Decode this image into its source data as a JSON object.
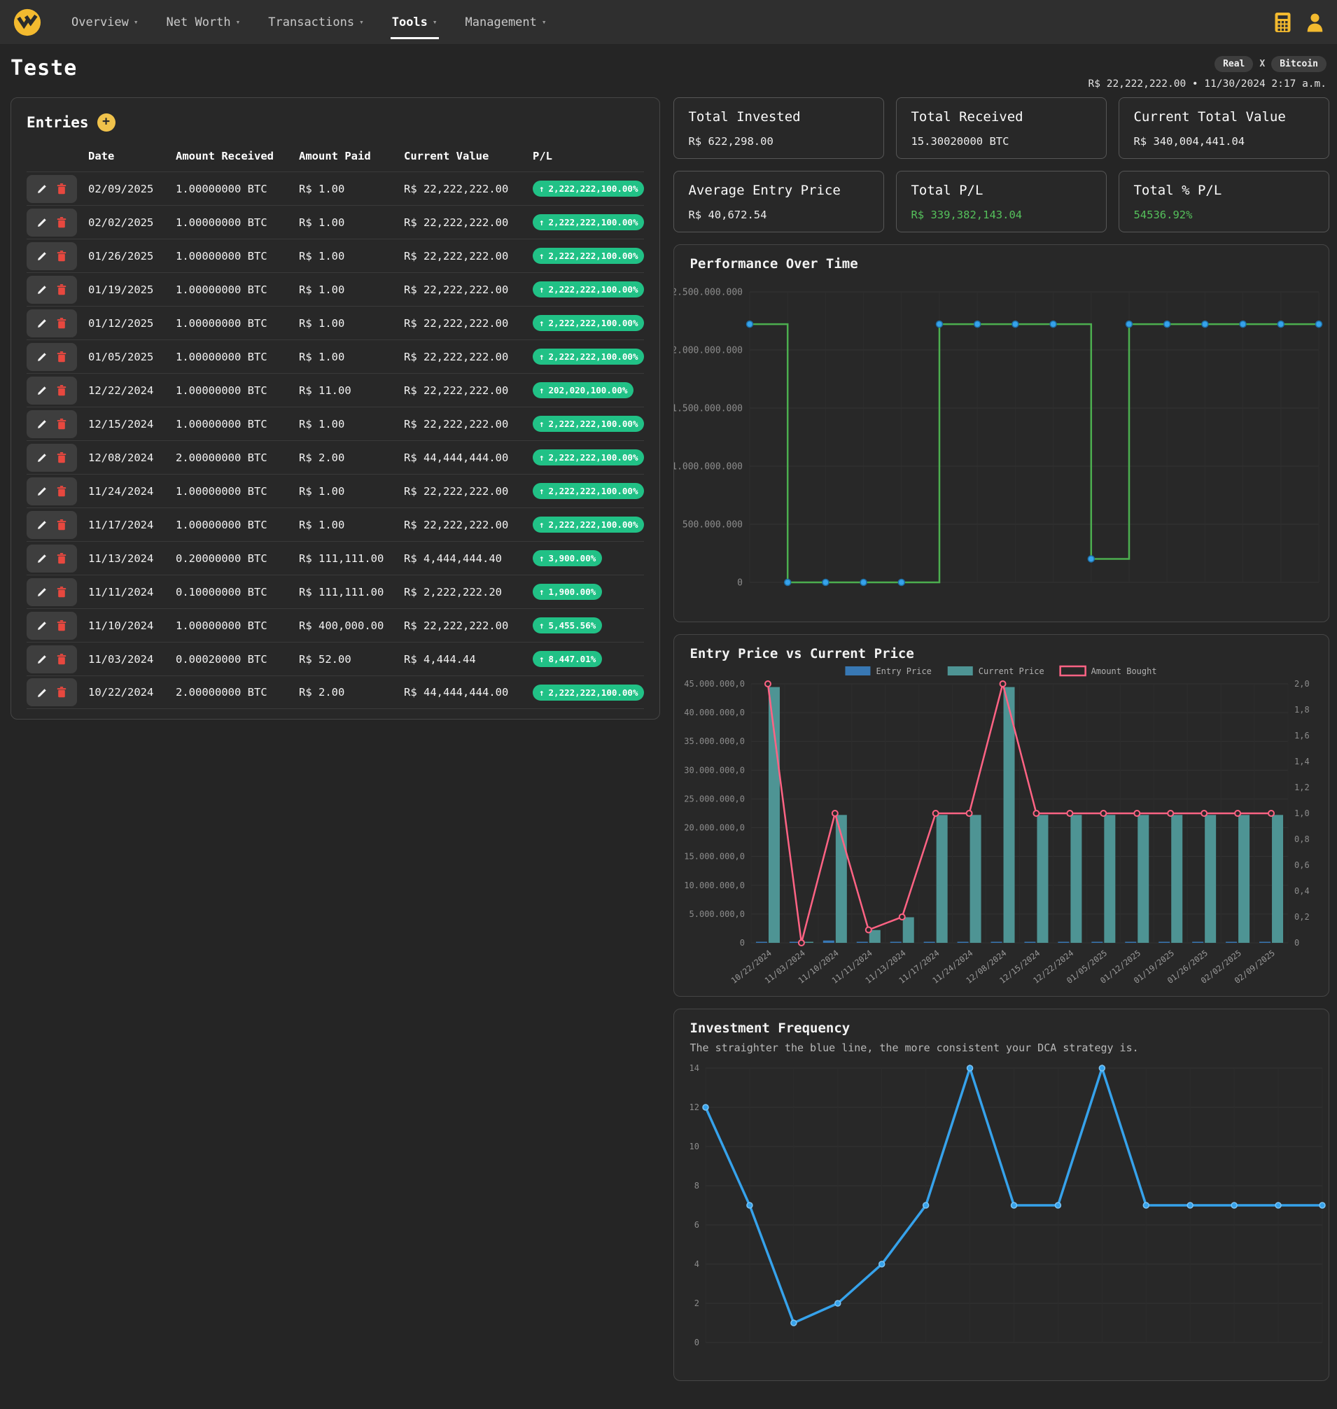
{
  "nav": {
    "items": [
      {
        "label": "Overview",
        "caret": "▾"
      },
      {
        "label": "Net Worth",
        "caret": "▾"
      },
      {
        "label": "Transactions",
        "caret": "▾"
      },
      {
        "label": "Tools",
        "caret": "▾"
      },
      {
        "label": "Management",
        "caret": "▾"
      }
    ],
    "active_item": "Tools",
    "right_icons": [
      "calculator-icon",
      "user-icon"
    ],
    "accent_color": "#f3ba2f"
  },
  "header": {
    "title": "Teste",
    "pair_left": "Real",
    "pair_separator": "X",
    "pair_right": "Bitcoin",
    "price_line": "R$ 22,222,222.00 • 11/30/2024 2:17 a.m."
  },
  "entries": {
    "title": "Entries",
    "add_icon": "plus-icon",
    "row_action_icons": [
      "pencil-icon",
      "trash-icon"
    ],
    "columns": [
      "Date",
      "Amount Received",
      "Amount Paid",
      "Current Value",
      "P/L"
    ],
    "pl_up_arrow": "↑",
    "pl_badge_color": "#21c186",
    "rows": [
      {
        "date": "02/09/2025",
        "amount_received": "1.00000000 BTC",
        "amount_paid": "R$ 1.00",
        "current_value": "R$ 22,222,222.00",
        "pl": "2,222,222,100.00%"
      },
      {
        "date": "02/02/2025",
        "amount_received": "1.00000000 BTC",
        "amount_paid": "R$ 1.00",
        "current_value": "R$ 22,222,222.00",
        "pl": "2,222,222,100.00%"
      },
      {
        "date": "01/26/2025",
        "amount_received": "1.00000000 BTC",
        "amount_paid": "R$ 1.00",
        "current_value": "R$ 22,222,222.00",
        "pl": "2,222,222,100.00%"
      },
      {
        "date": "01/19/2025",
        "amount_received": "1.00000000 BTC",
        "amount_paid": "R$ 1.00",
        "current_value": "R$ 22,222,222.00",
        "pl": "2,222,222,100.00%"
      },
      {
        "date": "01/12/2025",
        "amount_received": "1.00000000 BTC",
        "amount_paid": "R$ 1.00",
        "current_value": "R$ 22,222,222.00",
        "pl": "2,222,222,100.00%"
      },
      {
        "date": "01/05/2025",
        "amount_received": "1.00000000 BTC",
        "amount_paid": "R$ 1.00",
        "current_value": "R$ 22,222,222.00",
        "pl": "2,222,222,100.00%"
      },
      {
        "date": "12/22/2024",
        "amount_received": "1.00000000 BTC",
        "amount_paid": "R$ 11.00",
        "current_value": "R$ 22,222,222.00",
        "pl": "202,020,100.00%"
      },
      {
        "date": "12/15/2024",
        "amount_received": "1.00000000 BTC",
        "amount_paid": "R$ 1.00",
        "current_value": "R$ 22,222,222.00",
        "pl": "2,222,222,100.00%"
      },
      {
        "date": "12/08/2024",
        "amount_received": "2.00000000 BTC",
        "amount_paid": "R$ 2.00",
        "current_value": "R$ 44,444,444.00",
        "pl": "2,222,222,100.00%"
      },
      {
        "date": "11/24/2024",
        "amount_received": "1.00000000 BTC",
        "amount_paid": "R$ 1.00",
        "current_value": "R$ 22,222,222.00",
        "pl": "2,222,222,100.00%"
      },
      {
        "date": "11/17/2024",
        "amount_received": "1.00000000 BTC",
        "amount_paid": "R$ 1.00",
        "current_value": "R$ 22,222,222.00",
        "pl": "2,222,222,100.00%"
      },
      {
        "date": "11/13/2024",
        "amount_received": "0.20000000 BTC",
        "amount_paid": "R$ 111,111.00",
        "current_value": "R$ 4,444,444.40",
        "pl": "3,900.00%"
      },
      {
        "date": "11/11/2024",
        "amount_received": "0.10000000 BTC",
        "amount_paid": "R$ 111,111.00",
        "current_value": "R$ 2,222,222.20",
        "pl": "1,900.00%"
      },
      {
        "date": "11/10/2024",
        "amount_received": "1.00000000 BTC",
        "amount_paid": "R$ 400,000.00",
        "current_value": "R$ 22,222,222.00",
        "pl": "5,455.56%"
      },
      {
        "date": "11/03/2024",
        "amount_received": "0.00020000 BTC",
        "amount_paid": "R$ 52.00",
        "current_value": "R$ 4,444.44",
        "pl": "8,447.01%"
      },
      {
        "date": "10/22/2024",
        "amount_received": "2.00000000 BTC",
        "amount_paid": "R$ 2.00",
        "current_value": "R$ 44,444,444.00",
        "pl": "2,222,222,100.00%"
      }
    ]
  },
  "summary_cards": [
    {
      "label": "Total Invested",
      "value": "R$ 622,298.00",
      "value_color": "#ededed"
    },
    {
      "label": "Total Received",
      "value": "15.30020000 BTC",
      "value_color": "#ededed"
    },
    {
      "label": "Current Total Value",
      "value": "R$ 340,004,441.04",
      "value_color": "#ededed"
    },
    {
      "label": "Average Entry Price",
      "value": "R$ 40,672.54",
      "value_color": "#ededed"
    },
    {
      "label": "Total P/L",
      "value": "R$ 339,382,143.04",
      "value_color": "#55c05b"
    },
    {
      "label": "Total % P/L",
      "value": "54536.92%",
      "value_color": "#55c05b"
    }
  ],
  "chart_data": [
    {
      "id": "performance",
      "type": "line",
      "stepped": true,
      "title": "Performance Over Time",
      "categories": [
        "10/22/2024",
        "11/03/2024",
        "11/10/2024",
        "11/11/2024",
        "11/13/2024",
        "11/17/2024",
        "11/24/2024",
        "12/08/2024",
        "12/15/2024",
        "12/22/2024",
        "01/05/2025",
        "01/12/2025",
        "01/19/2025",
        "01/26/2025",
        "02/02/2025",
        "02/09/2025"
      ],
      "x_labels_visible": false,
      "values": [
        2222222100,
        8447.01,
        5455.56,
        1900,
        3900,
        2222222100,
        2222222100,
        2222222100,
        2222222100,
        202020100,
        2222222100,
        2222222100,
        2222222100,
        2222222100,
        2222222100,
        2222222100
      ],
      "ylim": [
        0,
        2500000000
      ],
      "y_ticks": [
        {
          "v": 2500000000,
          "label": "2.500.000.000"
        },
        {
          "v": 2000000000,
          "label": "2.000.000.000"
        },
        {
          "v": 1500000000,
          "label": "1.500.000.000"
        },
        {
          "v": 1000000000,
          "label": "1.000.000.000"
        },
        {
          "v": 500000000,
          "label": "500.000.000"
        },
        {
          "v": 0,
          "label": "0"
        }
      ],
      "line_color": "#4cae4f",
      "point_color": "#36a2eb",
      "grid": true,
      "legend": "none"
    },
    {
      "id": "entry_vs_current",
      "type": "bar",
      "title": "Entry Price vs Current Price",
      "categories": [
        "10/22/2024",
        "11/03/2024",
        "11/10/2024",
        "11/11/2024",
        "11/13/2024",
        "11/17/2024",
        "11/24/2024",
        "12/08/2024",
        "12/15/2024",
        "12/22/2024",
        "01/05/2025",
        "01/12/2025",
        "01/19/2025",
        "01/26/2025",
        "02/02/2025",
        "02/09/2025"
      ],
      "series": [
        {
          "name": "Entry Price",
          "kind": "bar",
          "axis": "left",
          "color": "#3878b4",
          "values": [
            2,
            52,
            400000,
            111111,
            111111,
            1,
            1,
            2,
            1,
            11,
            1,
            1,
            1,
            1,
            1,
            1
          ]
        },
        {
          "name": "Current Price",
          "kind": "bar",
          "axis": "left",
          "color": "#4e9494",
          "values": [
            44444444,
            4444.44,
            22222222,
            2222222.2,
            4444444.4,
            22222222,
            22222222,
            44444444,
            22222222,
            22222222,
            22222222,
            22222222,
            22222222,
            22222222,
            22222222,
            22222222
          ]
        },
        {
          "name": "Amount Bought",
          "kind": "line",
          "axis": "right",
          "color": "#ff6384",
          "values": [
            2,
            0.0002,
            1,
            0.1,
            0.2,
            1,
            1,
            2,
            1,
            1,
            1,
            1,
            1,
            1,
            1,
            1
          ]
        }
      ],
      "left_ylim": [
        0,
        45000000
      ],
      "left_ticks": [
        {
          "v": 45000000,
          "label": "45.000.000,0"
        },
        {
          "v": 40000000,
          "label": "40.000.000,0"
        },
        {
          "v": 35000000,
          "label": "35.000.000,0"
        },
        {
          "v": 30000000,
          "label": "30.000.000,0"
        },
        {
          "v": 25000000,
          "label": "25.000.000,0"
        },
        {
          "v": 20000000,
          "label": "20.000.000,0"
        },
        {
          "v": 15000000,
          "label": "15.000.000,0"
        },
        {
          "v": 10000000,
          "label": "10.000.000,0"
        },
        {
          "v": 5000000,
          "label": "5.000.000,0"
        },
        {
          "v": 0,
          "label": "0"
        }
      ],
      "right_ylim": [
        0,
        2
      ],
      "right_ticks": [
        {
          "v": 2.0,
          "label": "2,0"
        },
        {
          "v": 1.8,
          "label": "1,8"
        },
        {
          "v": 1.6,
          "label": "1,6"
        },
        {
          "v": 1.4,
          "label": "1,4"
        },
        {
          "v": 1.2,
          "label": "1,2"
        },
        {
          "v": 1.0,
          "label": "1,0"
        },
        {
          "v": 0.8,
          "label": "0,8"
        },
        {
          "v": 0.6,
          "label": "0,6"
        },
        {
          "v": 0.4,
          "label": "0,4"
        },
        {
          "v": 0.2,
          "label": "0,2"
        },
        {
          "v": 0,
          "label": "0"
        }
      ],
      "legend": "top-center"
    },
    {
      "id": "frequency",
      "type": "line",
      "title": "Investment Frequency",
      "subtitle": "The straighter the blue line, the more consistent your DCA strategy is.",
      "values": [
        12,
        7,
        1,
        2,
        4,
        7,
        14,
        7,
        7,
        14,
        7,
        7,
        7,
        7,
        7
      ],
      "ylim": [
        0,
        14
      ],
      "y_ticks": [
        {
          "v": 14,
          "label": "14"
        },
        {
          "v": 12,
          "label": "12"
        },
        {
          "v": 10,
          "label": "10"
        },
        {
          "v": 8,
          "label": "8"
        },
        {
          "v": 6,
          "label": "6"
        },
        {
          "v": 4,
          "label": "4"
        },
        {
          "v": 2,
          "label": "2"
        },
        {
          "v": 0,
          "label": "0"
        }
      ],
      "x_labels_visible": false,
      "line_color": "#36a2eb",
      "grid": true,
      "legend": "none"
    }
  ]
}
